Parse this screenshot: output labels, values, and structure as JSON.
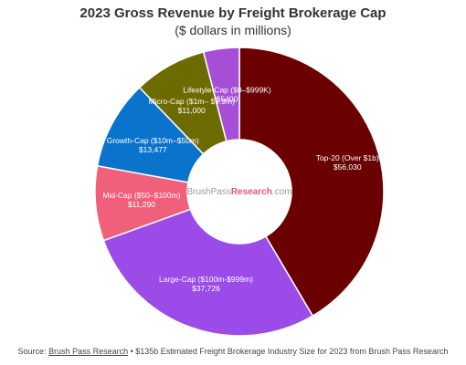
{
  "chart_data": {
    "type": "pie",
    "title": "2023 Gross Revenue by Freight Brokerage Cap",
    "subtitle": "($ dollars in millions)",
    "donut": true,
    "center_label": {
      "part1": "BrushPass",
      "part2": "Research",
      "part3": ".com"
    },
    "slices": [
      {
        "label": "Top-20 (Over $1b)",
        "value_text": "$56,030",
        "value": 56030,
        "color": "#6b0000"
      },
      {
        "label": "Large-Cap ($100m-$999m)",
        "value_text": "$37,726",
        "value": 37726,
        "color": "#9b4be8"
      },
      {
        "label": "Mid-Cap ($50–$100m)",
        "value_text": "$11,290",
        "value": 11290,
        "color": "#f0607a"
      },
      {
        "label": "Growth-Cap ($10m–$50m)",
        "value_text": "$13,477",
        "value": 13477,
        "color": "#0a74cc"
      },
      {
        "label": "Micro-Cap ($1m– $9.9m)",
        "value_text": "$11,000",
        "value": 11000,
        "color": "#6b6b00"
      },
      {
        "label": "Lifestyle-Cap ($0–$999K)",
        "value_text": "$5400",
        "value": 5400,
        "color": "#a64fd6"
      }
    ]
  },
  "source": {
    "prefix": "Source: ",
    "link_text": "Brush Pass Research",
    "separator": " • ",
    "rest": "$135b Estimated Freight Brokerage Industry Size for 2023 from Brush Pass Research"
  },
  "colors": {
    "center_brand_grey": "#999999",
    "center_brand_accent": "#e05a6e"
  }
}
